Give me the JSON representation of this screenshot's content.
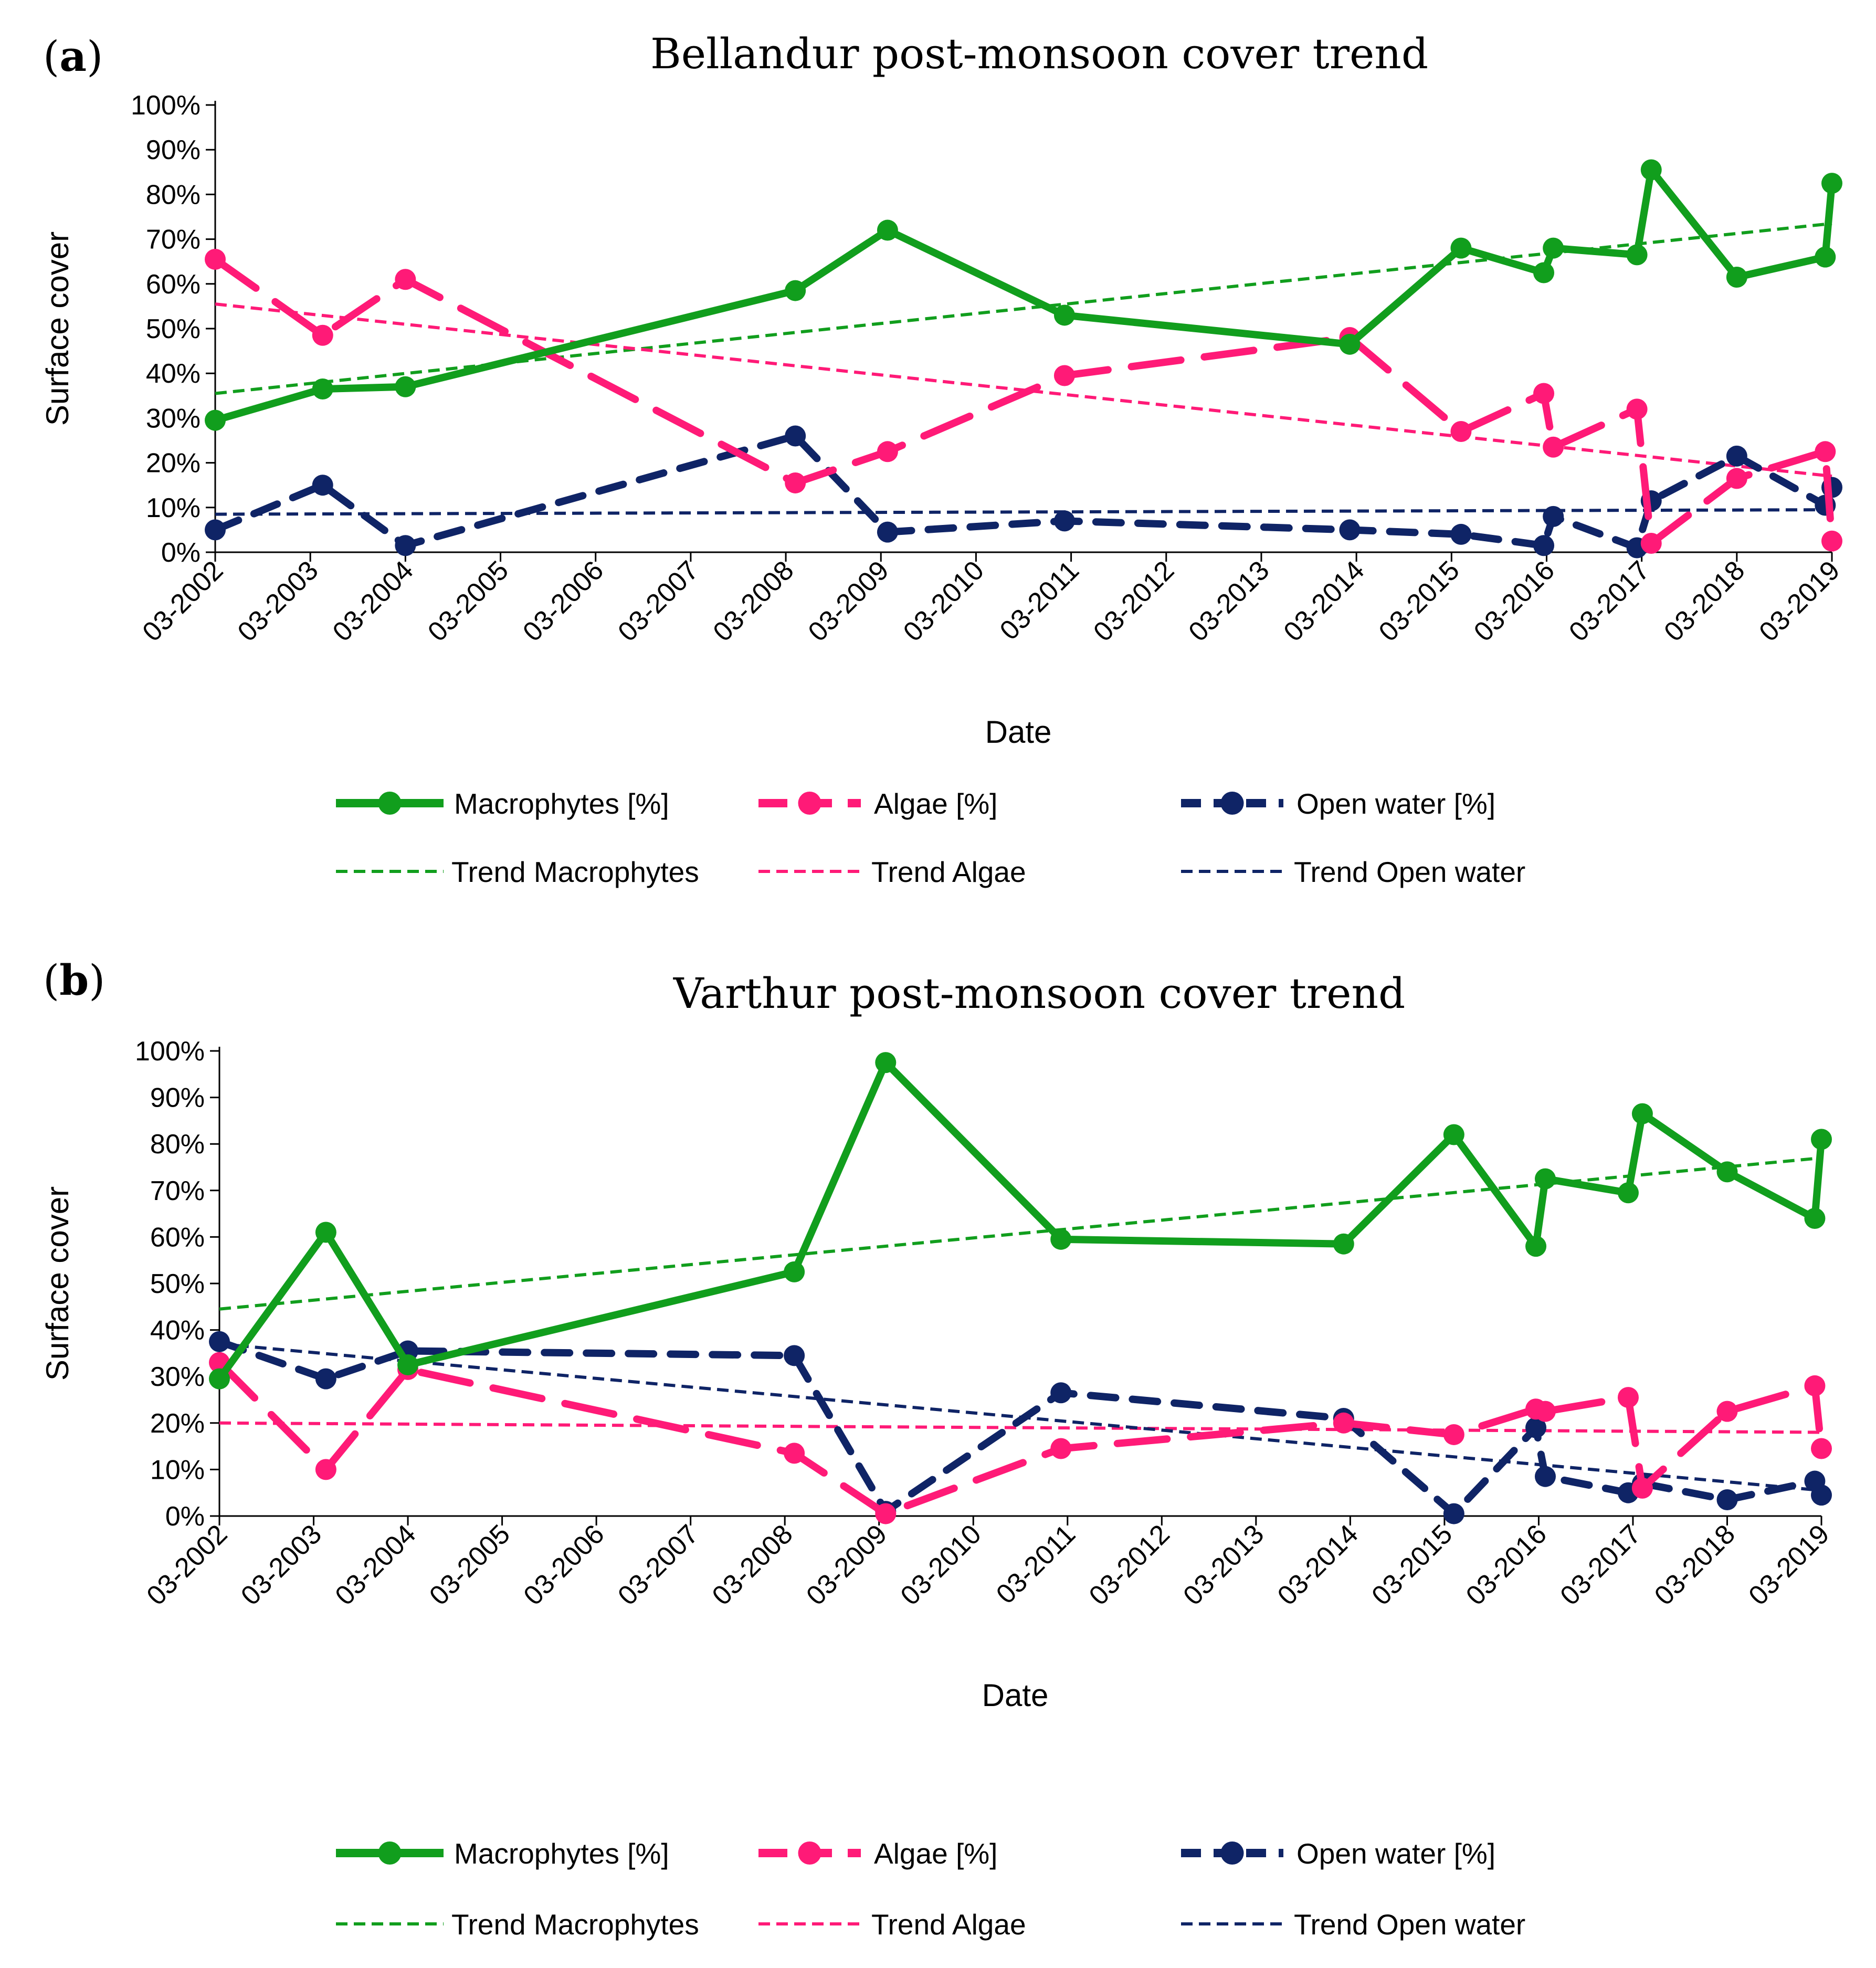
{
  "colors": {
    "macrophytes": "#119e1d",
    "algae": "#ff1a77",
    "open_water": "#0f2466",
    "axis": "#000000"
  },
  "legend": {
    "macro": "Macrophytes [%]",
    "algae": "Algae [%]",
    "open": "Open water [%]",
    "trend_macro": "Trend Macrophytes",
    "trend_algae": "Trend Algae",
    "trend_open": "Trend Open water"
  },
  "chart_data": [
    {
      "type": "line",
      "panel_label": "a",
      "title": "Bellandur post-monsoon cover trend",
      "xlabel": "Date",
      "ylabel": "Surface cover",
      "xlim": [
        2002.0,
        2019.0
      ],
      "ylim": [
        0,
        100
      ],
      "x_ticks": [
        "03-2002",
        "03-2003",
        "03-2004",
        "03-2005",
        "03-2006",
        "03-2007",
        "03-2008",
        "03-2009",
        "03-2010",
        "03-2011",
        "03-2012",
        "03-2013",
        "03-2014",
        "03-2015",
        "03-2016",
        "03-2017",
        "03-2018",
        "03-2019"
      ],
      "y_ticks": [
        "0%",
        "10%",
        "20%",
        "30%",
        "40%",
        "50%",
        "60%",
        "70%",
        "80%",
        "90%",
        "100%"
      ],
      "series": [
        {
          "name": "Macrophytes [%]",
          "key": "macro",
          "x": [
            2002.0,
            2003.13,
            2004.0,
            2008.1,
            2009.07,
            2010.93,
            2013.93,
            2015.1,
            2015.97,
            2016.07,
            2016.95,
            2017.1,
            2018.0,
            2018.93,
            2019.0
          ],
          "y": [
            29.5,
            36.5,
            37,
            58.5,
            72,
            53,
            46.5,
            68,
            62.5,
            68,
            66.5,
            85.5,
            61.5,
            66,
            82.5
          ]
        },
        {
          "name": "Algae [%]",
          "key": "algae",
          "x": [
            2002.0,
            2003.13,
            2004.0,
            2008.1,
            2009.07,
            2010.93,
            2013.93,
            2015.1,
            2015.97,
            2016.07,
            2016.95,
            2017.1,
            2018.0,
            2018.93,
            2019.0
          ],
          "y": [
            65.5,
            48.5,
            61,
            15.5,
            22.5,
            39.5,
            48,
            27,
            35.5,
            23.5,
            32,
            2,
            16.5,
            22.5,
            2.5
          ]
        },
        {
          "name": "Open water [%]",
          "key": "open",
          "x": [
            2002.0,
            2003.13,
            2004.0,
            2008.1,
            2009.07,
            2010.93,
            2013.93,
            2015.1,
            2015.97,
            2016.07,
            2016.95,
            2017.1,
            2018.0,
            2018.93,
            2019.0
          ],
          "y": [
            5,
            15,
            1.5,
            26,
            4.5,
            7,
            5,
            4,
            1.5,
            8,
            1,
            11.5,
            21.5,
            10.5,
            14.5
          ]
        }
      ],
      "trends": [
        {
          "name": "Trend Macrophytes",
          "key": "macro",
          "x": [
            2002.0,
            2019.0
          ],
          "y": [
            35.5,
            73.5
          ]
        },
        {
          "name": "Trend Algae",
          "key": "algae",
          "x": [
            2002.0,
            2019.0
          ],
          "y": [
            55.5,
            17
          ]
        },
        {
          "name": "Trend Open water",
          "key": "open",
          "x": [
            2002.0,
            2019.0
          ],
          "y": [
            8.5,
            9.5
          ]
        }
      ]
    },
    {
      "type": "line",
      "panel_label": "b",
      "title": "Varthur post-monsoon cover trend",
      "xlabel": "Date",
      "ylabel": "Surface cover",
      "xlim": [
        2002.0,
        2019.0
      ],
      "ylim": [
        0,
        100
      ],
      "x_ticks": [
        "03-2002",
        "03-2003",
        "03-2004",
        "03-2005",
        "03-2006",
        "03-2007",
        "03-2008",
        "03-2009",
        "03-2010",
        "03-2011",
        "03-2012",
        "03-2013",
        "03-2014",
        "03-2015",
        "03-2016",
        "03-2017",
        "03-2018",
        "03-2019"
      ],
      "y_ticks": [
        "0%",
        "10%",
        "20%",
        "30%",
        "40%",
        "50%",
        "60%",
        "70%",
        "80%",
        "90%",
        "100%"
      ],
      "series": [
        {
          "name": "Macrophytes [%]",
          "key": "macro",
          "x": [
            2002.0,
            2003.13,
            2004.0,
            2008.1,
            2009.07,
            2010.93,
            2013.93,
            2015.1,
            2015.97,
            2016.07,
            2016.95,
            2017.1,
            2018.0,
            2018.93,
            2019.0
          ],
          "y": [
            29.5,
            61,
            32.5,
            52.5,
            97.5,
            59.5,
            58.5,
            82,
            58,
            72.5,
            69.5,
            86.5,
            74,
            64,
            81
          ]
        },
        {
          "name": "Algae [%]",
          "key": "algae",
          "x": [
            2002.0,
            2003.13,
            2004.0,
            2008.1,
            2009.07,
            2010.93,
            2013.93,
            2015.1,
            2015.97,
            2016.07,
            2016.95,
            2017.1,
            2018.0,
            2018.93,
            2019.0
          ],
          "y": [
            33,
            10,
            31.5,
            13.5,
            0.5,
            14.5,
            20,
            17.5,
            23,
            22.5,
            25.5,
            6,
            22.5,
            28,
            14.5
          ]
        },
        {
          "name": "Open water [%]",
          "key": "open",
          "x": [
            2002.0,
            2003.13,
            2004.0,
            2008.1,
            2009.07,
            2010.93,
            2013.93,
            2015.1,
            2015.97,
            2016.07,
            2016.95,
            2017.1,
            2018.0,
            2018.93,
            2019.0
          ],
          "y": [
            37.5,
            29.5,
            35.5,
            34.5,
            1,
            26.5,
            21,
            0.5,
            19,
            8.5,
            5,
            7,
            3.5,
            7.5,
            4.5
          ]
        }
      ],
      "trends": [
        {
          "name": "Trend Macrophytes",
          "key": "macro",
          "x": [
            2002.0,
            2019.0
          ],
          "y": [
            44.5,
            77
          ]
        },
        {
          "name": "Trend Algae",
          "key": "algae",
          "x": [
            2002.0,
            2019.0
          ],
          "y": [
            20,
            18
          ]
        },
        {
          "name": "Trend Open water",
          "key": "open",
          "x": [
            2002.0,
            2019.0
          ],
          "y": [
            37,
            5.5
          ]
        }
      ]
    }
  ]
}
